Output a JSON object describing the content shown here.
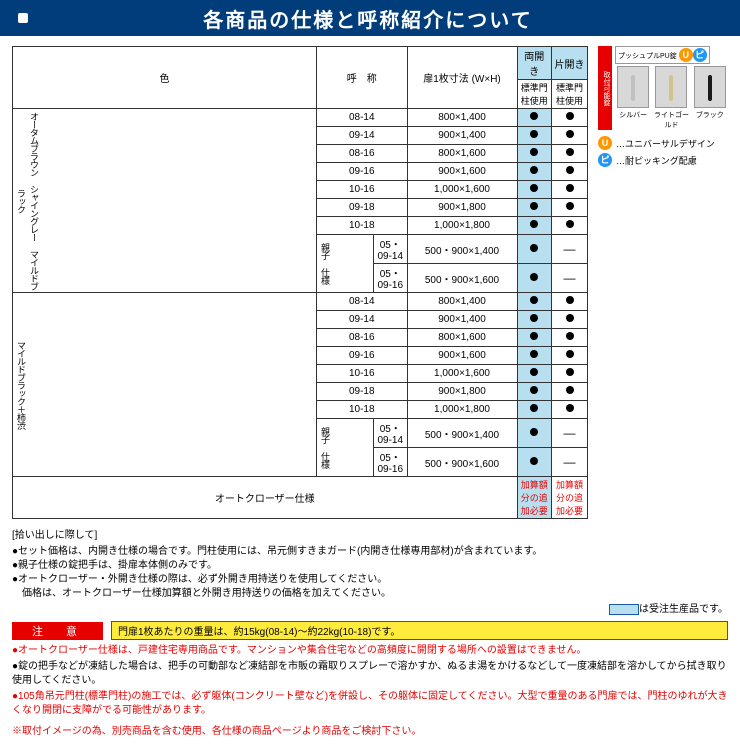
{
  "header": {
    "title": "各商品の仕様と呼称紹介について"
  },
  "table": {
    "headers": {
      "color": "色",
      "name": "呼　称",
      "size": "扉1枚寸法\n(W×H)",
      "double": "両開き",
      "single": "片開き",
      "std": "標準門柱使用"
    },
    "colors": [
      "オータムブラウン\nシャイングレー\nマイルドブラック",
      "マイルドブラック＋柿渋"
    ],
    "oyako": "親子\n仕様",
    "rows1": [
      {
        "n": "08-14",
        "s": "800×1,400",
        "d": true,
        "g": true
      },
      {
        "n": "09-14",
        "s": "900×1,400",
        "d": true,
        "g": true
      },
      {
        "n": "08-16",
        "s": "800×1,600",
        "d": true,
        "g": true
      },
      {
        "n": "09-16",
        "s": "900×1,600",
        "d": true,
        "g": true
      },
      {
        "n": "10-16",
        "s": "1,000×1,600",
        "d": true,
        "g": true
      },
      {
        "n": "09-18",
        "s": "900×1,800",
        "d": true,
        "g": true
      },
      {
        "n": "10-18",
        "s": "1,000×1,800",
        "d": true,
        "g": true
      }
    ],
    "oyako1": [
      {
        "n": "05・09-14",
        "s": "500・900×1,400",
        "d": true,
        "g": false
      },
      {
        "n": "05・09-16",
        "s": "500・900×1,600",
        "d": true,
        "g": false
      }
    ],
    "rows2": [
      {
        "n": "08-14",
        "s": "800×1,400",
        "d": true,
        "g": true
      },
      {
        "n": "09-14",
        "s": "900×1,400",
        "d": true,
        "g": true
      },
      {
        "n": "08-16",
        "s": "800×1,600",
        "d": true,
        "g": true
      },
      {
        "n": "09-16",
        "s": "900×1,600",
        "d": true,
        "g": true
      },
      {
        "n": "10-16",
        "s": "1,000×1,600",
        "d": true,
        "g": true
      },
      {
        "n": "09-18",
        "s": "900×1,800",
        "d": true,
        "g": true
      },
      {
        "n": "10-18",
        "s": "1,000×1,800",
        "d": true,
        "g": true
      }
    ],
    "oyako2": [
      {
        "n": "05・09-14",
        "s": "500・900×1,400",
        "d": true,
        "g": false
      },
      {
        "n": "05・09-16",
        "s": "500・900×1,600",
        "d": true,
        "g": false
      }
    ],
    "autocloser": "オートクローザー仕様",
    "addition": "加算額分の追加必要"
  },
  "side": {
    "tag": "取付可能錠",
    "pupu": "プッシュプルPU錠",
    "swatches": [
      {
        "label": "シルバー",
        "color": "#c0c0c0"
      },
      {
        "label": "ライトゴールド",
        "color": "#d4c388"
      },
      {
        "label": "ブラック",
        "color": "#1a1a1a"
      }
    ],
    "legends": [
      {
        "badge": "U",
        "bcolor": "#ff9800",
        "text": "…ユニバーサルデザイン"
      },
      {
        "badge": "ピ",
        "bcolor": "#2196f3",
        "text": "…耐ピッキング配慮"
      }
    ]
  },
  "notes": {
    "title": "[拾い出しに際して]",
    "items": [
      "●セット価格は、内開き仕様の場合です。門柱使用には、吊元側すきまガード(内開き仕様専用部材)が含まれています。",
      "●親子仕様の錠把手は、掛扉本体側のみです。",
      "●オートクローザー・外開き仕様の際は、必ず外開き用持送りを使用してください。\n　価格は、オートクローザー仕様加算額と外開き用持送りの価格を加えてください。"
    ],
    "receive": "は受注生産品です。"
  },
  "alert": {
    "label": "注　意",
    "yellow": "門扉1枚あたりの重量は、約15kg(08-14)～約22kg(10-18)です。"
  },
  "warnings": [
    "●オートクローザー仕様は、戸建住宅専用商品です。マンションや集合住宅などの高頻度に開閉する場所への設置はできません。",
    "●錠の把手などが凍結した場合は、把手の可動部など凍結部を市販の霜取りスプレーで溶かすか、ぬるま湯をかけるなどして一度凍結部を溶かしてから拭き取り使用してください。",
    "●105角吊元門柱(標準門柱)の施工では、必ず躯体(コンクリート壁など)を併設し、その躯体に固定してください。大型で重量のある門扉では、門柱のゆれが大きくなり開閉に支障がでる可能性があります。"
  ],
  "footer": "※取付イメージの為、別売商品を含む使用、各仕様の商品ページより商品をご検討下さい。"
}
